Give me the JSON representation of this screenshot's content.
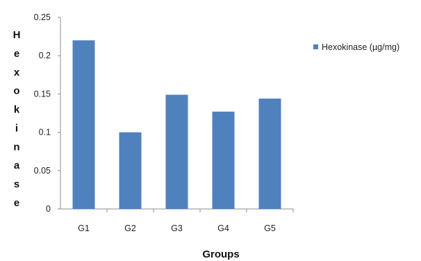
{
  "chart_data": {
    "type": "bar",
    "categories": [
      "G1",
      "G2",
      "G3",
      "G4",
      "G5"
    ],
    "series": [
      {
        "name": "Hexokinase (µg/mg)",
        "values": [
          0.22,
          0.1,
          0.149,
          0.127,
          0.144
        ],
        "color": "#4F81BD"
      }
    ],
    "title": "",
    "xlabel": "Groups",
    "ylabel": "Hexokinase",
    "ylim": [
      0,
      0.25
    ],
    "yticks": [
      "0",
      "0.05",
      "0.1",
      "0.15",
      "0.2",
      "0.25"
    ],
    "grid": false,
    "legend_position": "top-right"
  }
}
